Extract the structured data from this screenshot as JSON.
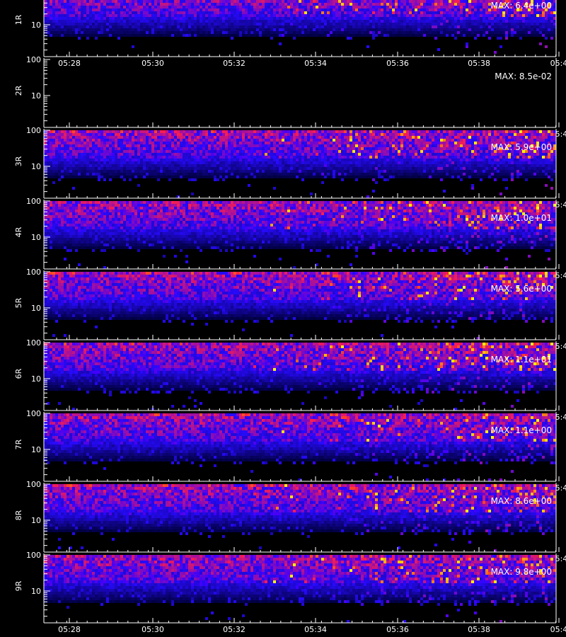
{
  "colors": {
    "background": "#000000",
    "axes": "#ffffff"
  },
  "chart_data": {
    "type": "heatmap",
    "colormap": "black-blue-red-yellow",
    "x_ticks": [
      "05:28",
      "05:30",
      "05:32",
      "05:34",
      "05:36",
      "05:38",
      "05:4"
    ],
    "y_ticks": [
      "100",
      "10"
    ],
    "xlabel": "",
    "panels": [
      {
        "label": "1R",
        "max": "MAX: 6.4e+00",
        "max_value": 6.4
      },
      {
        "label": "2R",
        "max": "MAX: 8.5e-02",
        "max_value": 0.085
      },
      {
        "label": "3R",
        "max": "MAX: 5.9e+00",
        "max_value": 5.9
      },
      {
        "label": "4R",
        "max": "MAX: 1.0e+01",
        "max_value": 10.0
      },
      {
        "label": "5R",
        "max": "MAX: 5.6e+00",
        "max_value": 5.6
      },
      {
        "label": "6R",
        "max": "MAX: 1.1e+01",
        "max_value": 11.0
      },
      {
        "label": "7R",
        "max": "MAX: 1.1e+00",
        "max_value": 1.1
      },
      {
        "label": "8R",
        "max": "MAX: 8.6e+00",
        "max_value": 8.6
      },
      {
        "label": "9R",
        "max": "MAX: 9.8e+00",
        "max_value": 9.8
      }
    ]
  }
}
